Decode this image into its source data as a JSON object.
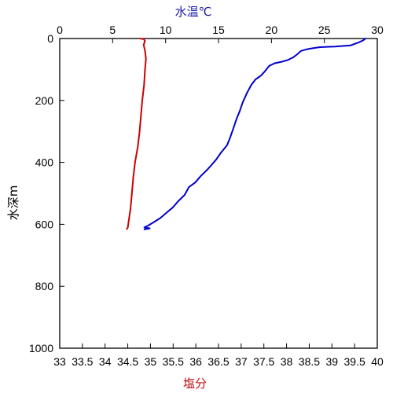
{
  "chart_data": {
    "type": "line",
    "title": "",
    "grid": false,
    "depth_axis": {
      "label": "水深m",
      "range": [
        0,
        1000
      ],
      "inverted": true,
      "ticks": [
        0,
        200,
        400,
        600,
        800,
        1000
      ]
    },
    "temperature_axis": {
      "label": "水温℃",
      "position": "top",
      "color": "#1a1aa6",
      "range": [
        0,
        30
      ],
      "ticks": [
        0,
        5,
        10,
        15,
        20,
        25,
        30
      ]
    },
    "salinity_axis": {
      "label": "塩分",
      "position": "bottom",
      "color": "#c01010",
      "range": [
        33,
        40
      ],
      "ticks": [
        "33",
        "33.5",
        "34",
        "34.5",
        "35",
        "35.5",
        "36",
        "36.5",
        "37",
        "37.5",
        "38",
        "38.5",
        "39",
        "39.5",
        "40"
      ]
    },
    "series": [
      {
        "axis": "temperature",
        "color": "#0000cc",
        "points": [
          [
            28.9,
            0
          ],
          [
            28.7,
            5
          ],
          [
            28.3,
            12
          ],
          [
            27.5,
            22
          ],
          [
            26.0,
            26
          ],
          [
            25.2,
            27
          ],
          [
            24.6,
            28
          ],
          [
            24.2,
            30
          ],
          [
            23.6,
            33
          ],
          [
            23.2,
            36
          ],
          [
            22.8,
            40
          ],
          [
            22.4,
            52
          ],
          [
            22.0,
            62
          ],
          [
            21.5,
            70
          ],
          [
            21.0,
            75
          ],
          [
            20.3,
            80
          ],
          [
            19.8,
            88
          ],
          [
            19.4,
            105
          ],
          [
            19.0,
            120
          ],
          [
            18.5,
            132
          ],
          [
            18.1,
            150
          ],
          [
            17.7,
            175
          ],
          [
            17.3,
            205
          ],
          [
            17.0,
            235
          ],
          [
            16.7,
            260
          ],
          [
            16.4,
            290
          ],
          [
            16.1,
            320
          ],
          [
            15.8,
            345
          ],
          [
            15.2,
            370
          ],
          [
            14.8,
            390
          ],
          [
            14.3,
            410
          ],
          [
            13.9,
            425
          ],
          [
            13.3,
            445
          ],
          [
            12.8,
            465
          ],
          [
            12.2,
            480
          ],
          [
            11.8,
            505
          ],
          [
            11.2,
            525
          ],
          [
            10.7,
            545
          ],
          [
            10.0,
            565
          ],
          [
            9.5,
            580
          ],
          [
            8.8,
            595
          ],
          [
            8.3,
            605
          ],
          [
            8.0,
            610
          ],
          [
            8.3,
            612
          ],
          [
            8.5,
            613
          ],
          [
            8.4,
            614
          ],
          [
            8.0,
            616
          ]
        ]
      },
      {
        "axis": "salinity",
        "color": "#cc0000",
        "points": [
          [
            34.77,
            0
          ],
          [
            34.85,
            2
          ],
          [
            34.88,
            8
          ],
          [
            34.85,
            20
          ],
          [
            34.88,
            40
          ],
          [
            34.9,
            65
          ],
          [
            34.88,
            100
          ],
          [
            34.86,
            150
          ],
          [
            34.82,
            200
          ],
          [
            34.79,
            250
          ],
          [
            34.76,
            300
          ],
          [
            34.72,
            350
          ],
          [
            34.66,
            400
          ],
          [
            34.62,
            450
          ],
          [
            34.59,
            500
          ],
          [
            34.56,
            550
          ],
          [
            34.52,
            590
          ],
          [
            34.5,
            610
          ],
          [
            34.49,
            613
          ],
          [
            34.48,
            615
          ]
        ]
      }
    ]
  }
}
